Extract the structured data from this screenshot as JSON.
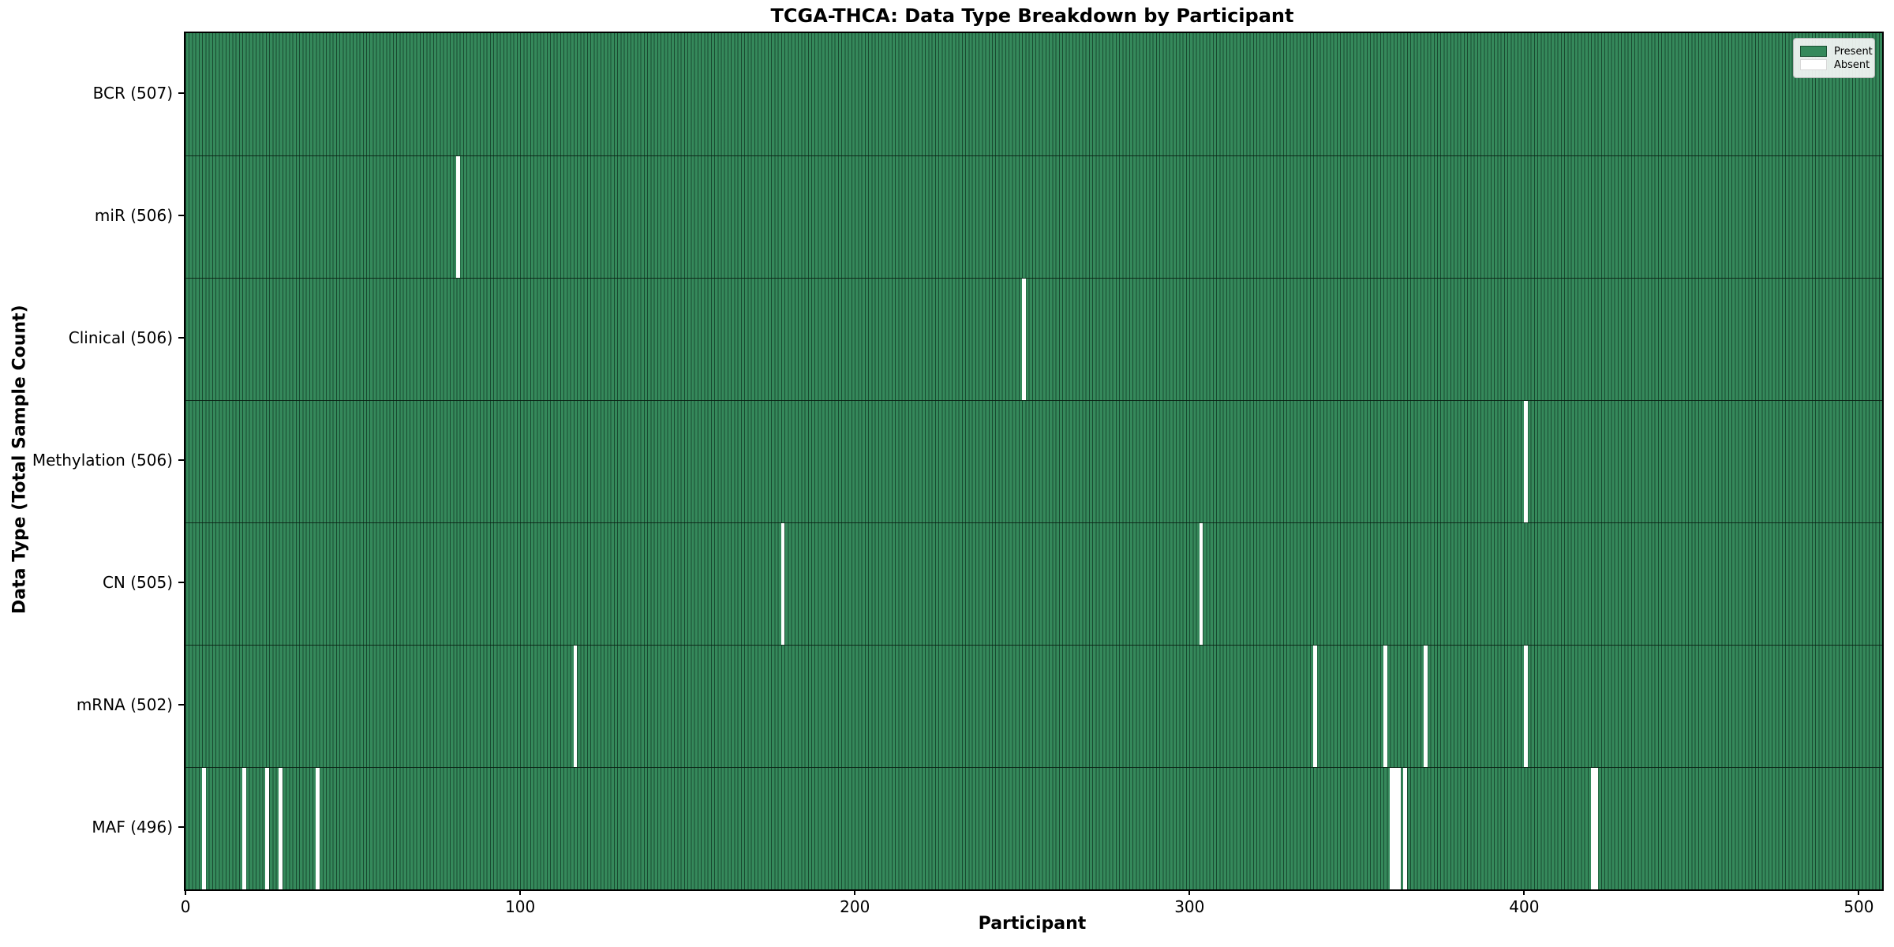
{
  "chart_data": {
    "type": "heatmap",
    "title": "TCGA-THCA: Data Type Breakdown by Participant",
    "xlabel": "Participant",
    "ylabel": "Data Type (Total Sample Count)",
    "n_participants": 507,
    "xlim": [
      -0.5,
      506.5
    ],
    "x_ticks": [
      0,
      100,
      200,
      300,
      400,
      500
    ],
    "grid": false,
    "legend": {
      "position": "upper right",
      "entries": [
        {
          "label": "Present",
          "color": "#35895b"
        },
        {
          "label": "Absent",
          "color": "#ffffff"
        }
      ]
    },
    "colors": {
      "present_fill": "#35895b",
      "bar_edge": "#0e3320",
      "absent_fill": "#ffffff",
      "row_divider": "#081c12",
      "spine": "#000000"
    },
    "rows": [
      {
        "data_type": "BCR",
        "label": "BCR (507)",
        "total": 507,
        "absent_participants": []
      },
      {
        "data_type": "miR",
        "label": "miR (506)",
        "total": 506,
        "absent_participants": [
          81
        ]
      },
      {
        "data_type": "Clinical",
        "label": "Clinical (506)",
        "total": 506,
        "absent_participants": [
          250
        ]
      },
      {
        "data_type": "Methylation",
        "label": "Methylation (506)",
        "total": 506,
        "absent_participants": [
          400
        ]
      },
      {
        "data_type": "CN",
        "label": "CN (505)",
        "total": 505,
        "absent_participants": [
          178,
          303
        ]
      },
      {
        "data_type": "mRNA",
        "label": "mRNA (502)",
        "total": 502,
        "absent_participants": [
          116,
          337,
          358,
          370,
          400
        ]
      },
      {
        "data_type": "MAF",
        "label": "MAF (496)",
        "total": 496,
        "absent_participants": [
          5,
          17,
          24,
          28,
          39,
          360,
          361,
          362,
          364,
          420,
          421
        ]
      }
    ]
  }
}
